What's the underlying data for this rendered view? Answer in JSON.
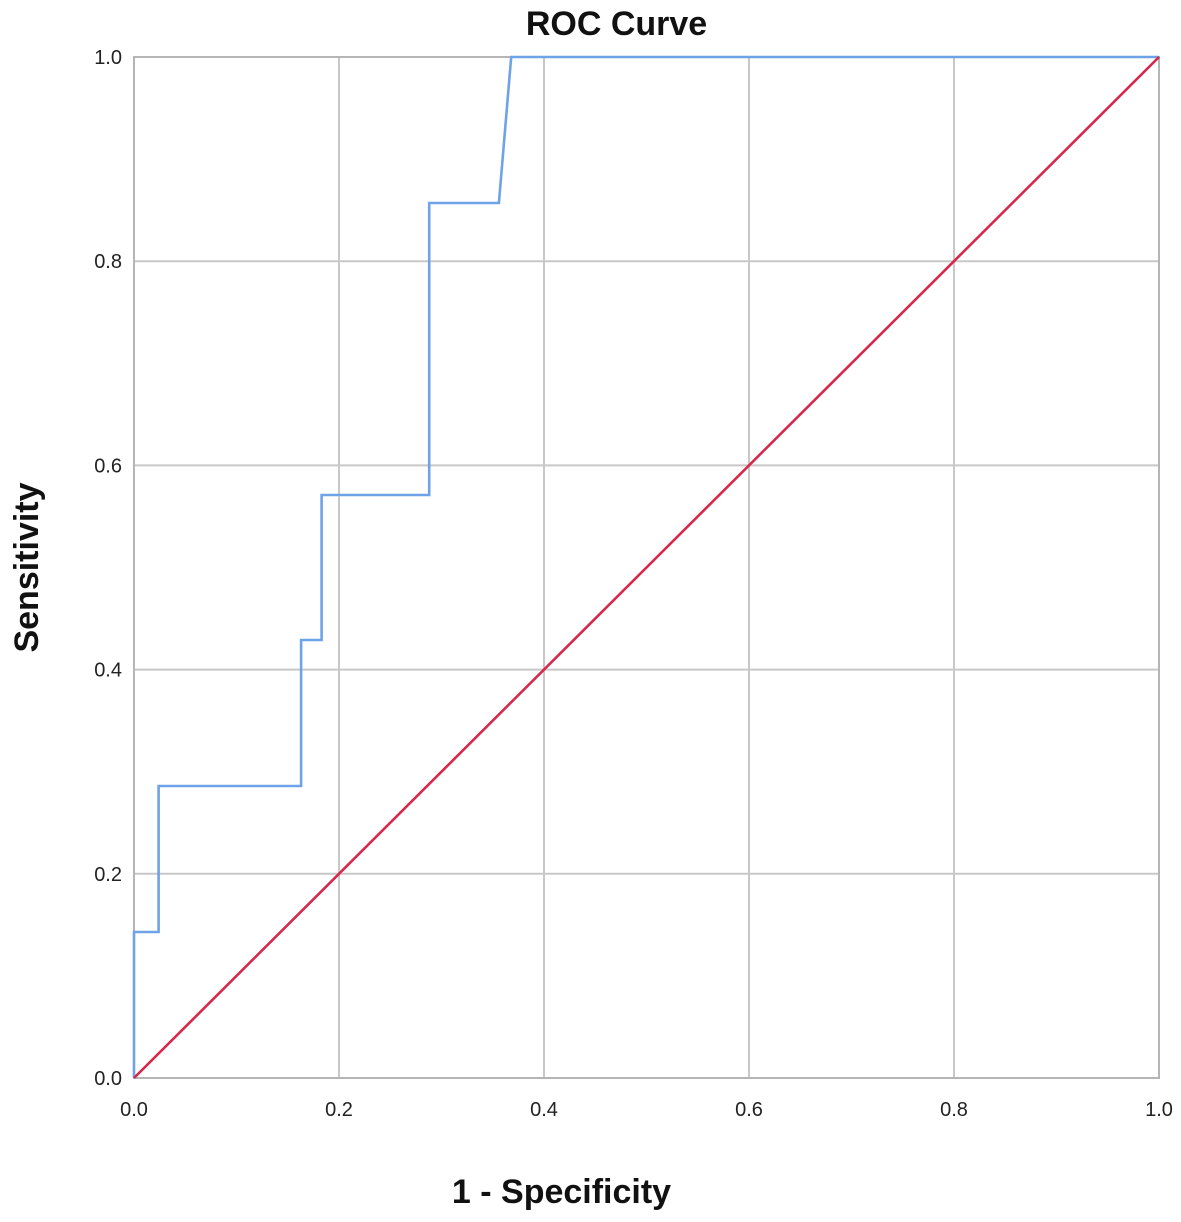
{
  "chart_data": {
    "type": "line",
    "title": "ROC Curve",
    "xlabel": "1 - Specificity",
    "ylabel": "Sensitivity",
    "xlim": [
      0.0,
      1.0
    ],
    "ylim": [
      0.0,
      1.0
    ],
    "x_ticks": [
      "0.0",
      "0.2",
      "0.4",
      "0.6",
      "0.8",
      "1.0"
    ],
    "y_ticks": [
      "0.0",
      "0.2",
      "0.4",
      "0.6",
      "0.8",
      "1.0"
    ],
    "grid": true,
    "series": [
      {
        "color": "#6fa3e8",
        "x": [
          0.0,
          0.0,
          0.024,
          0.024,
          0.163,
          0.163,
          0.183,
          0.183,
          0.288,
          0.288,
          0.356,
          0.368,
          0.368,
          1.0
        ],
        "y": [
          0.0,
          0.143,
          0.143,
          0.286,
          0.286,
          0.429,
          0.429,
          0.571,
          0.571,
          0.857,
          0.857,
          1.0,
          1.0,
          1.0
        ]
      },
      {
        "color": "#d6284a",
        "x": [
          0.0,
          1.0
        ],
        "y": [
          0.0,
          1.0
        ]
      }
    ]
  }
}
